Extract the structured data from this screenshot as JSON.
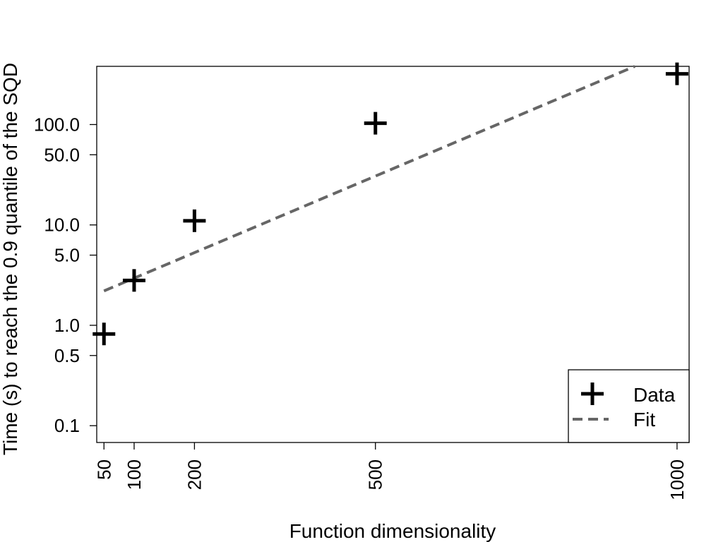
{
  "chart_data": {
    "type": "scatter",
    "title": "",
    "xlabel": "Function dimensionality",
    "ylabel": "Time (s) to reach the 0.9 quantile of the SQD",
    "xlim": [
      38,
      1020
    ],
    "ylim": [
      0.068,
      380
    ],
    "yscale": "log",
    "grid": false,
    "x_ticks": [
      50,
      100,
      200,
      500,
      1000
    ],
    "x_tick_labels": [
      "50",
      "100",
      "200",
      "500",
      "1000"
    ],
    "y_ticks": [
      0.1,
      0.5,
      1.0,
      5.0,
      10.0,
      50.0,
      100.0
    ],
    "y_tick_labels": [
      "0.1",
      "0.5",
      "1.0",
      "5.0",
      "10.0",
      "50.0",
      "100.0"
    ],
    "series": [
      {
        "name": "Data",
        "kind": "points",
        "marker": "plus",
        "color": "#000000",
        "x": [
          50,
          100,
          200,
          500,
          1000
        ],
        "y": [
          0.82,
          2.8,
          11.0,
          103,
          320
        ]
      },
      {
        "name": "Fit",
        "kind": "line",
        "style": "dashed",
        "color": "#666666",
        "x": [
          50,
          930
        ],
        "y": [
          2.2,
          380
        ]
      }
    ],
    "legend": {
      "position": "bottom-right",
      "entries": [
        "Data",
        "Fit"
      ]
    }
  }
}
